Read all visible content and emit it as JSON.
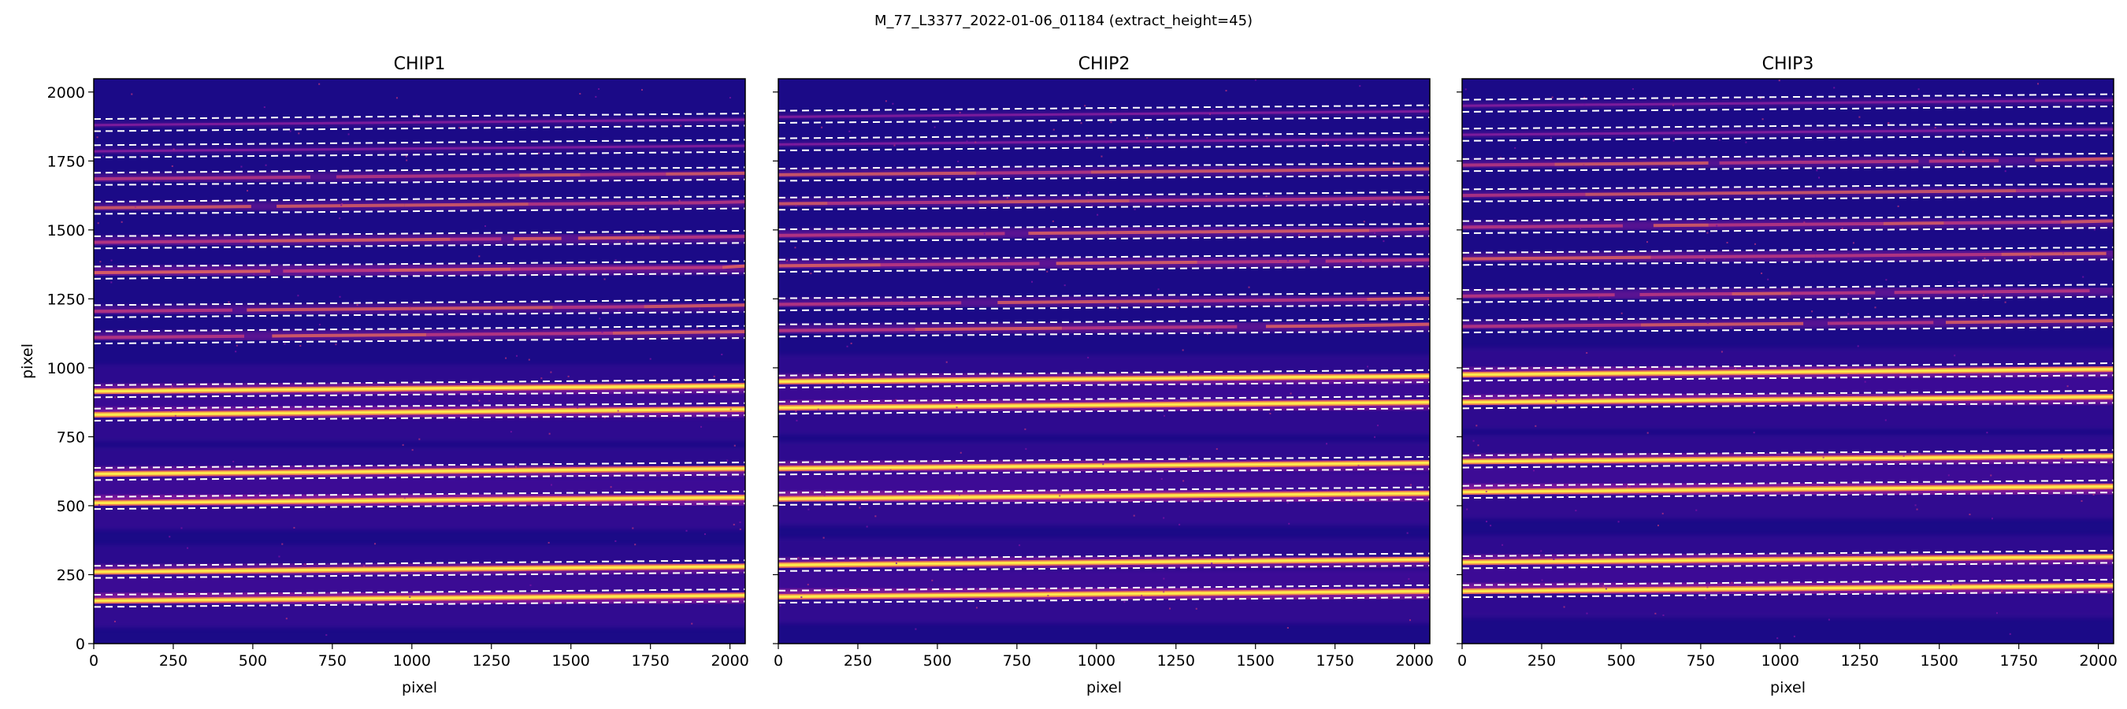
{
  "figure": {
    "title": "M_77_L3377_2022-01-06_01184  (extract_height=45)"
  },
  "chart_data": [
    {
      "type": "heatmap",
      "title": "CHIP1",
      "xlabel": "pixel",
      "ylabel": "pixel",
      "xlim": [
        0,
        2048
      ],
      "ylim": [
        0,
        2048
      ],
      "xticks": [
        0,
        250,
        500,
        750,
        1000,
        1250,
        1500,
        1750,
        2000
      ],
      "yticks": [
        0,
        250,
        500,
        750,
        1000,
        1250,
        1500,
        1750,
        2000
      ],
      "colormap": "plasma",
      "trace_centers": [
        {
          "y": 155,
          "strength": 1.0
        },
        {
          "y": 260,
          "strength": 0.75
        },
        {
          "y": 510,
          "strength": 1.0
        },
        {
          "y": 615,
          "strength": 0.8
        },
        {
          "y": 830,
          "strength": 0.85
        },
        {
          "y": 915,
          "strength": 0.8
        },
        {
          "y": 1110,
          "strength": 0.55
        },
        {
          "y": 1205,
          "strength": 0.5
        },
        {
          "y": 1345,
          "strength": 0.7
        },
        {
          "y": 1455,
          "strength": 0.55
        },
        {
          "y": 1580,
          "strength": 0.45
        },
        {
          "y": 1685,
          "strength": 0.45
        },
        {
          "y": 1785,
          "strength": 0.2
        },
        {
          "y": 1880,
          "strength": 0.2
        }
      ],
      "extract_half_height": 22
    },
    {
      "type": "heatmap",
      "title": "CHIP2",
      "xlabel": "pixel",
      "ylabel": "",
      "xlim": [
        0,
        2048
      ],
      "ylim": [
        0,
        2048
      ],
      "xticks": [
        0,
        250,
        500,
        750,
        1000,
        1250,
        1500,
        1750,
        2000
      ],
      "yticks": [
        0,
        250,
        500,
        750,
        1000,
        1250,
        1500,
        1750,
        2000
      ],
      "colormap": "plasma",
      "trace_centers": [
        {
          "y": 170,
          "strength": 1.0
        },
        {
          "y": 285,
          "strength": 0.8
        },
        {
          "y": 525,
          "strength": 1.0
        },
        {
          "y": 635,
          "strength": 0.85
        },
        {
          "y": 855,
          "strength": 0.85
        },
        {
          "y": 950,
          "strength": 0.8
        },
        {
          "y": 1135,
          "strength": 0.55
        },
        {
          "y": 1230,
          "strength": 0.5
        },
        {
          "y": 1370,
          "strength": 0.6
        },
        {
          "y": 1480,
          "strength": 0.55
        },
        {
          "y": 1595,
          "strength": 0.45
        },
        {
          "y": 1700,
          "strength": 0.45
        },
        {
          "y": 1810,
          "strength": 0.2
        },
        {
          "y": 1910,
          "strength": 0.2
        }
      ],
      "extract_half_height": 22
    },
    {
      "type": "heatmap",
      "title": "CHIP3",
      "xlabel": "pixel",
      "ylabel": "",
      "xlim": [
        0,
        2048
      ],
      "ylim": [
        0,
        2048
      ],
      "xticks": [
        0,
        250,
        500,
        750,
        1000,
        1250,
        1500,
        1750,
        2000
      ],
      "yticks": [
        0,
        250,
        500,
        750,
        1000,
        1250,
        1500,
        1750,
        2000
      ],
      "colormap": "plasma",
      "trace_centers": [
        {
          "y": 190,
          "strength": 0.95
        },
        {
          "y": 295,
          "strength": 0.85
        },
        {
          "y": 550,
          "strength": 1.0
        },
        {
          "y": 660,
          "strength": 0.85
        },
        {
          "y": 875,
          "strength": 0.85
        },
        {
          "y": 975,
          "strength": 0.85
        },
        {
          "y": 1150,
          "strength": 0.5
        },
        {
          "y": 1260,
          "strength": 0.55
        },
        {
          "y": 1395,
          "strength": 0.55
        },
        {
          "y": 1510,
          "strength": 0.5
        },
        {
          "y": 1625,
          "strength": 0.4
        },
        {
          "y": 1735,
          "strength": 0.45
        },
        {
          "y": 1845,
          "strength": 0.25
        },
        {
          "y": 1950,
          "strength": 0.25
        }
      ],
      "extract_half_height": 22
    }
  ]
}
